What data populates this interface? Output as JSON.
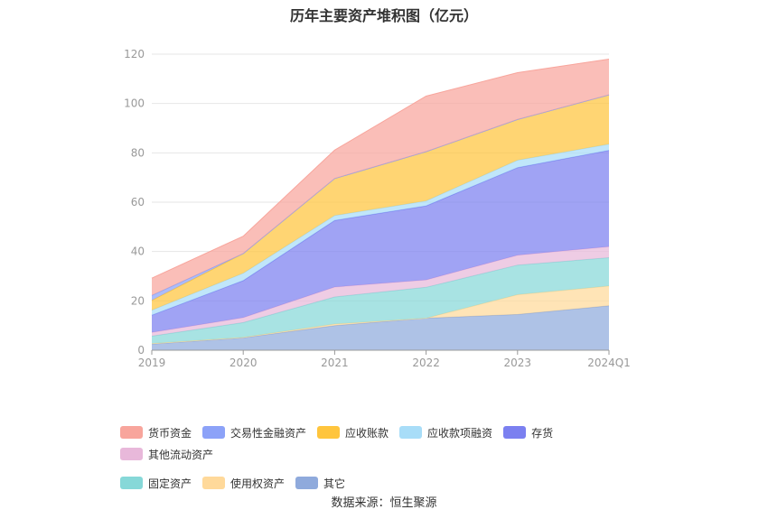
{
  "chart_data": {
    "type": "area",
    "stacked": true,
    "title": "历年主要资产堆积图（亿元）",
    "categories": [
      "2019",
      "2020",
      "2021",
      "2022",
      "2023",
      "2024Q1"
    ],
    "ylim": [
      0,
      120
    ],
    "yticks": [
      0,
      20,
      40,
      60,
      80,
      100,
      120
    ],
    "grid": true,
    "legend_position": "bottom",
    "series": [
      {
        "name": "其它",
        "color": "#8FAADC",
        "values": [
          2.5,
          5,
          10,
          13,
          14.5,
          18
        ]
      },
      {
        "name": "使用权资产",
        "color": "#FFD99A",
        "values": [
          0.2,
          0.2,
          0.6,
          0,
          8,
          8
        ]
      },
      {
        "name": "固定资产",
        "color": "#86D8D8",
        "values": [
          3,
          6,
          11,
          12.5,
          12,
          11.5
        ]
      },
      {
        "name": "其他流动资产",
        "color": "#E8B8DA",
        "values": [
          1.5,
          2,
          4,
          3,
          4,
          4.5
        ]
      },
      {
        "name": "存货",
        "color": "#7B80F0",
        "values": [
          7,
          15,
          27,
          30,
          35.5,
          39
        ]
      },
      {
        "name": "应收款项融资",
        "color": "#A8DDF8",
        "values": [
          2,
          3,
          2,
          2,
          3,
          2.5
        ]
      },
      {
        "name": "应收账款",
        "color": "#FFC53D",
        "values": [
          4,
          8,
          15,
          20,
          16.5,
          20
        ]
      },
      {
        "name": "交易性金融资产",
        "color": "#8CA2F8",
        "values": [
          2,
          0,
          0,
          0,
          0,
          0
        ]
      },
      {
        "name": "货币资金",
        "color": "#F8A59C",
        "values": [
          7,
          7,
          11.5,
          22.5,
          19,
          14.5
        ]
      }
    ]
  },
  "legend": [
    {
      "label": "货币资金",
      "color": "#F8A59C"
    },
    {
      "label": "交易性金融资产",
      "color": "#8CA2F8"
    },
    {
      "label": "应收账款",
      "color": "#FFC53D"
    },
    {
      "label": "应收款项融资",
      "color": "#A8DDF8"
    },
    {
      "label": "存货",
      "color": "#7B80F0"
    },
    {
      "label": "其他流动资产",
      "color": "#E8B8DA"
    },
    {
      "label": "固定资产",
      "color": "#86D8D8"
    },
    {
      "label": "使用权资产",
      "color": "#FFD99A"
    },
    {
      "label": "其它",
      "color": "#8FAADC"
    }
  ],
  "source": "数据来源：恒生聚源"
}
